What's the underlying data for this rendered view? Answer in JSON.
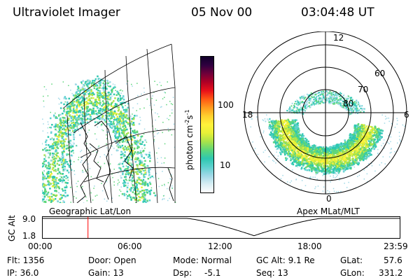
{
  "header": {
    "instrument": "Ultraviolet Imager",
    "date": "05 Nov 00",
    "time": "03:04:48 UT"
  },
  "colorbar": {
    "label": "photon cm",
    "label_sup1": "-2",
    "label_mid": "s",
    "label_sup2": "-1",
    "tick_100": "100",
    "tick_10": "10",
    "colors": [
      "#ffffff",
      "#d8eef4",
      "#9fd8e6",
      "#5ed1cf",
      "#2ec8b0",
      "#5dd67a",
      "#a9e24a",
      "#e6f038",
      "#fff23a",
      "#ffd12e",
      "#ff9a1f",
      "#ff5a14",
      "#e8101a",
      "#b00025",
      "#70003a",
      "#300040",
      "#10002a"
    ]
  },
  "geo_panel": {
    "caption": "Geographic Lat/Lon"
  },
  "polar_panel": {
    "caption": "Apex MLat/MLT",
    "mlt_labels": {
      "top": "12",
      "left": "18",
      "right": "6",
      "bottom": "0"
    },
    "lat_labels": [
      "60",
      "70",
      "80"
    ]
  },
  "timeline": {
    "axis_label": "GC Alt",
    "ymax": "9.0",
    "ymin": "1.8",
    "ticks": [
      "00:00",
      "06:00",
      "12:00",
      "18:00",
      "23:59"
    ],
    "current_time_hours": 3.08,
    "marker_color": "#ff0000"
  },
  "info": {
    "flt": "Flt: 1356",
    "ip": "IP: 36.0",
    "door": "Door: Open",
    "gain": "Gain: 13",
    "mode": "Mode: Normal",
    "dsp_label": "Dsp:",
    "dsp_value": "-5.1",
    "gcalt": "GC Alt: 9.1 Re",
    "seq": "Seq: 13",
    "glat_label": "GLat:",
    "glat_value": "57.6",
    "glon_label": "GLon:",
    "glon_value": "331.2"
  }
}
